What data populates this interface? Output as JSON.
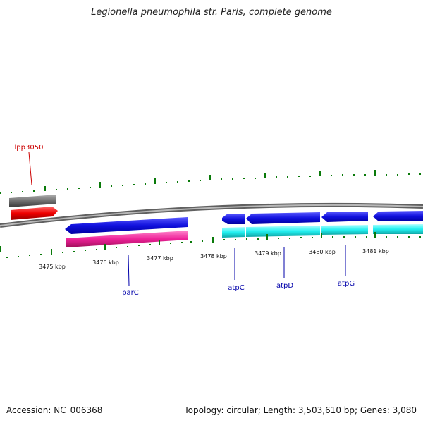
{
  "header": {
    "title": "Legionella pneumophila str. Paris, complete genome"
  },
  "footer": {
    "accession": "Accession: NC_006368",
    "summary": "Topology: circular; Length: 3,503,610 bp; Genes: 3,080"
  },
  "scale": {
    "ticks": [
      "3475 kbp",
      "3476 kbp",
      "3477 kbp",
      "3478 kbp",
      "3479 kbp",
      "3480 kbp",
      "3481 kbp"
    ]
  },
  "genes": [
    {
      "label": "lpp3050",
      "color": "#cc0000"
    },
    {
      "label": "parC",
      "color": "#0000aa"
    },
    {
      "label": "atpC",
      "color": "#0000aa"
    },
    {
      "label": "atpD",
      "color": "#0000aa"
    },
    {
      "label": "atpG",
      "color": "#0000aa"
    }
  ],
  "colors": {
    "grey_track": "#6e6e6e",
    "red_track": "#ee0000",
    "blue_track": "#1010dd",
    "magenta_track": "#ee2299",
    "cyan_track": "#22f0f0",
    "tick_green": "#0a7a0a",
    "backbone": "#8a8a8a"
  }
}
